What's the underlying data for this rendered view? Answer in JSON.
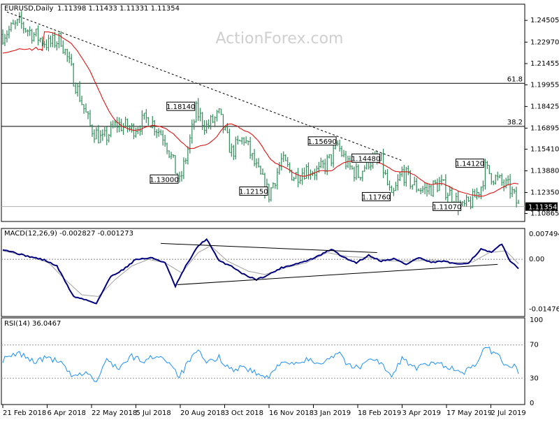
{
  "header": {
    "title": "EURUSD,Daily",
    "ohlc": "1.11398 1.11433 1.11331 1.11354"
  },
  "watermark": "ActionForex.com",
  "colors": {
    "price": "#2e8b57",
    "ma": "#e00000",
    "macd": "#000080",
    "signal": "#a0a0a0",
    "rsi": "#1e90ff",
    "trend": "#000000"
  },
  "chart_data": [
    {
      "type": "line",
      "panel": "price",
      "y_ticks": [
        "1.24505",
        "1.22970",
        "1.21455",
        "1.19955",
        "1.18425",
        "1.16895",
        "1.15410",
        "1.13880",
        "1.12350",
        "1.10865"
      ],
      "ylim": [
        1.1035,
        1.256
      ],
      "x_ticks": [
        "21 Feb 2018",
        "6 Apr 2018",
        "22 May 2018",
        "5 Jul 2018",
        "20 Aug 2018",
        "3 Oct 2018",
        "16 Nov 2018",
        "3 Jan 2019",
        "18 Feb 2019",
        "3 Apr 2019",
        "17 May 2019",
        "2 Jul 2019"
      ],
      "last_price": "1.11354",
      "fib_levels": [
        {
          "label": "61.8",
          "value": 1.2006
        },
        {
          "label": "38.2",
          "value": 1.1702
        }
      ],
      "price_labels": [
        {
          "text": "1.18140",
          "bar": 93,
          "value": 1.1814
        },
        {
          "text": "1.13000",
          "bar": 85,
          "value": 1.13
        },
        {
          "text": "1.15690",
          "bar": 161,
          "value": 1.1569
        },
        {
          "text": "1.12150",
          "bar": 128,
          "value": 1.1215
        },
        {
          "text": "1.14480",
          "bar": 182,
          "value": 1.1448
        },
        {
          "text": "1.11760",
          "bar": 187,
          "value": 1.1176
        },
        {
          "text": "1.14120",
          "bar": 232,
          "value": 1.1412
        },
        {
          "text": "1.11070",
          "bar": 221,
          "value": 1.1107
        }
      ],
      "anchors": [
        [
          0,
          1.235
        ],
        [
          8,
          1.243
        ],
        [
          15,
          1.235
        ],
        [
          22,
          1.228
        ],
        [
          28,
          1.232
        ],
        [
          35,
          1.2
        ],
        [
          42,
          1.17
        ],
        [
          48,
          1.16
        ],
        [
          55,
          1.172
        ],
        [
          62,
          1.168
        ],
        [
          70,
          1.176
        ],
        [
          78,
          1.162
        ],
        [
          85,
          1.13
        ],
        [
          90,
          1.16
        ],
        [
          93,
          1.181
        ],
        [
          98,
          1.17
        ],
        [
          104,
          1.178
        ],
        [
          110,
          1.152
        ],
        [
          116,
          1.162
        ],
        [
          122,
          1.14
        ],
        [
          128,
          1.122
        ],
        [
          134,
          1.146
        ],
        [
          140,
          1.135
        ],
        [
          146,
          1.14
        ],
        [
          152,
          1.138
        ],
        [
          158,
          1.148
        ],
        [
          161,
          1.157
        ],
        [
          166,
          1.142
        ],
        [
          171,
          1.136
        ],
        [
          176,
          1.146
        ],
        [
          182,
          1.145
        ],
        [
          187,
          1.118
        ],
        [
          192,
          1.138
        ],
        [
          198,
          1.128
        ],
        [
          204,
          1.125
        ],
        [
          210,
          1.13
        ],
        [
          216,
          1.121
        ],
        [
          221,
          1.112
        ],
        [
          226,
          1.118
        ],
        [
          230,
          1.128
        ],
        [
          232,
          1.14
        ],
        [
          238,
          1.132
        ],
        [
          244,
          1.126
        ],
        [
          248,
          1.1135
        ]
      ],
      "trendline": [
        [
          2,
          1.251
        ],
        [
          192,
          1.146
        ]
      ]
    },
    {
      "type": "line",
      "panel": "MACD",
      "title": "MACD(12,26,9) -0.002827 -0.001273",
      "y_ticks": [
        "0.007494",
        "0.00",
        "-0.01476"
      ],
      "ylim": [
        -0.0165,
        0.0085
      ],
      "anchors": [
        [
          0,
          0.003
        ],
        [
          10,
          0.0012
        ],
        [
          20,
          -0.0002
        ],
        [
          26,
          -0.002
        ],
        [
          34,
          -0.011
        ],
        [
          40,
          -0.012
        ],
        [
          45,
          -0.013
        ],
        [
          52,
          -0.005
        ],
        [
          58,
          -0.003
        ],
        [
          64,
          0.0
        ],
        [
          72,
          0.0004
        ],
        [
          78,
          -0.001
        ],
        [
          83,
          -0.008
        ],
        [
          88,
          -0.002
        ],
        [
          94,
          0.004
        ],
        [
          98,
          0.006
        ],
        [
          104,
          -0.0005
        ],
        [
          110,
          -0.002
        ],
        [
          116,
          -0.0045
        ],
        [
          122,
          -0.006
        ],
        [
          128,
          -0.0045
        ],
        [
          134,
          -0.0025
        ],
        [
          140,
          -0.0015
        ],
        [
          146,
          -0.0005
        ],
        [
          152,
          0.001
        ],
        [
          158,
          0.003
        ],
        [
          164,
          0.0005
        ],
        [
          170,
          -0.001
        ],
        [
          176,
          0.0012
        ],
        [
          182,
          -0.0005
        ],
        [
          188,
          0.0002
        ],
        [
          194,
          -0.0015
        ],
        [
          200,
          0.0005
        ],
        [
          206,
          -0.001
        ],
        [
          212,
          -0.0005
        ],
        [
          218,
          -0.0015
        ],
        [
          224,
          -0.001
        ],
        [
          230,
          0.003
        ],
        [
          235,
          0.002
        ],
        [
          240,
          0.0045
        ],
        [
          244,
          -0.0005
        ],
        [
          248,
          -0.0028
        ]
      ],
      "signal_anchors": [
        [
          0,
          0.0025
        ],
        [
          12,
          0.001
        ],
        [
          22,
          -0.001
        ],
        [
          30,
          -0.006
        ],
        [
          38,
          -0.0105
        ],
        [
          46,
          -0.011
        ],
        [
          54,
          -0.006
        ],
        [
          62,
          -0.002
        ],
        [
          70,
          0.0
        ],
        [
          78,
          -0.001
        ],
        [
          86,
          -0.004
        ],
        [
          94,
          0.002
        ],
        [
          100,
          0.004
        ],
        [
          108,
          -0.0005
        ],
        [
          118,
          -0.0035
        ],
        [
          126,
          -0.0045
        ],
        [
          136,
          -0.0025
        ],
        [
          146,
          -0.001
        ],
        [
          156,
          0.002
        ],
        [
          166,
          0.0008
        ],
        [
          176,
          0.0005
        ],
        [
          186,
          -0.0005
        ],
        [
          196,
          -0.0005
        ],
        [
          206,
          -0.0002
        ],
        [
          216,
          -0.001
        ],
        [
          226,
          -0.0008
        ],
        [
          234,
          0.002
        ],
        [
          242,
          0.0025
        ],
        [
          248,
          -0.0013
        ]
      ],
      "trendlines": [
        [
          [
            76,
            0.0047
          ],
          [
            180,
            0.002
          ]
        ],
        [
          [
            84,
            -0.0075
          ],
          [
            238,
            -0.0015
          ]
        ]
      ]
    },
    {
      "type": "line",
      "panel": "RSI",
      "title": "RSI(14) 36.0467",
      "y_ticks": [
        "100",
        "70",
        "30",
        "0"
      ],
      "ylim": [
        0,
        100
      ],
      "levels": [
        70,
        30
      ],
      "anchors": [
        [
          0,
          52
        ],
        [
          8,
          60
        ],
        [
          15,
          50
        ],
        [
          22,
          55
        ],
        [
          28,
          48
        ],
        [
          34,
          30
        ],
        [
          40,
          38
        ],
        [
          45,
          25
        ],
        [
          50,
          52
        ],
        [
          56,
          42
        ],
        [
          62,
          56
        ],
        [
          68,
          50
        ],
        [
          74,
          58
        ],
        [
          80,
          50
        ],
        [
          85,
          32
        ],
        [
          90,
          52
        ],
        [
          94,
          62
        ],
        [
          98,
          48
        ],
        [
          104,
          55
        ],
        [
          110,
          40
        ],
        [
          116,
          44
        ],
        [
          122,
          35
        ],
        [
          128,
          30
        ],
        [
          134,
          52
        ],
        [
          140,
          45
        ],
        [
          146,
          52
        ],
        [
          152,
          48
        ],
        [
          158,
          56
        ],
        [
          162,
          62
        ],
        [
          166,
          45
        ],
        [
          172,
          42
        ],
        [
          176,
          56
        ],
        [
          182,
          48
        ],
        [
          187,
          30
        ],
        [
          192,
          55
        ],
        [
          198,
          42
        ],
        [
          204,
          46
        ],
        [
          210,
          48
        ],
        [
          216,
          42
        ],
        [
          221,
          35
        ],
        [
          226,
          44
        ],
        [
          230,
          56
        ],
        [
          232,
          67
        ],
        [
          238,
          58
        ],
        [
          242,
          46
        ],
        [
          246,
          44
        ],
        [
          248,
          36
        ]
      ]
    }
  ]
}
